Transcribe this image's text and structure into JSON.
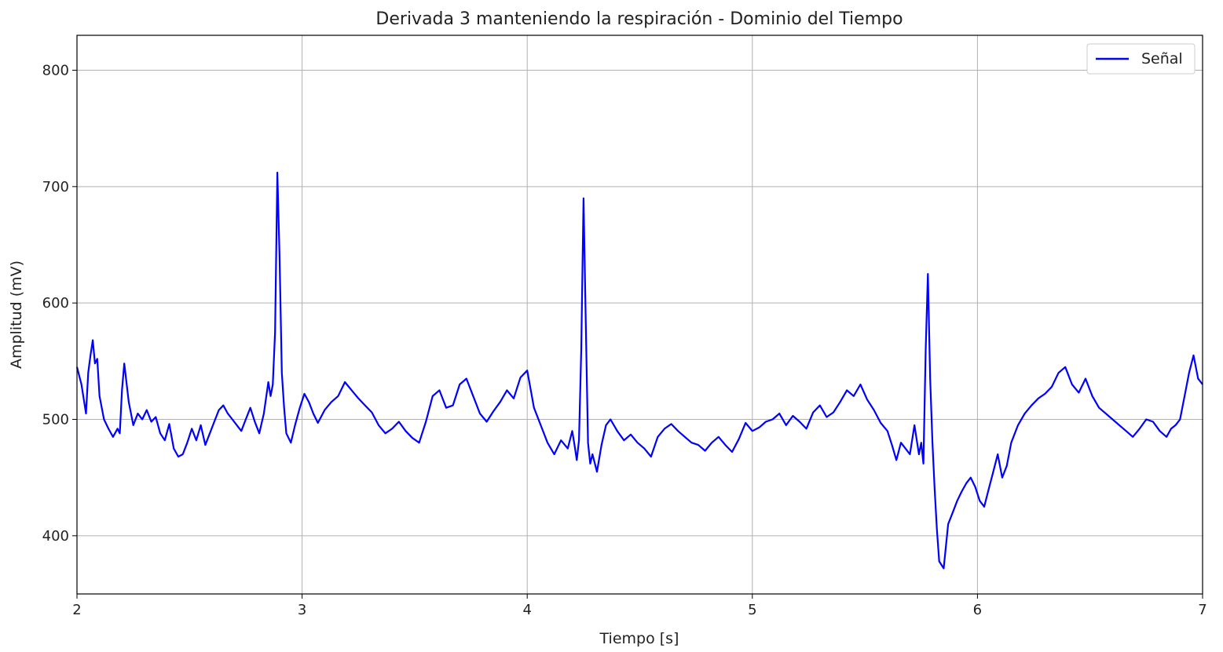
{
  "chart_data": {
    "type": "line",
    "title": "Derivada 3 manteniendo la respiración - Dominio del Tiempo",
    "xlabel": "Tiempo [s]",
    "ylabel": "Amplitud (mV)",
    "xlim": [
      2,
      7
    ],
    "ylim": [
      350,
      830
    ],
    "x_ticks": [
      "2",
      "3",
      "4",
      "5",
      "6",
      "7"
    ],
    "y_ticks": [
      "400",
      "500",
      "600",
      "700",
      "800"
    ],
    "grid": true,
    "legend_position": "top-right",
    "series": [
      {
        "name": "Señal",
        "color": "#0000ff",
        "x": [
          2.0,
          2.02,
          2.04,
          2.05,
          2.06,
          2.07,
          2.08,
          2.09,
          2.1,
          2.12,
          2.14,
          2.16,
          2.18,
          2.19,
          2.2,
          2.21,
          2.23,
          2.25,
          2.27,
          2.29,
          2.31,
          2.33,
          2.35,
          2.37,
          2.39,
          2.41,
          2.43,
          2.45,
          2.47,
          2.49,
          2.51,
          2.53,
          2.55,
          2.57,
          2.59,
          2.61,
          2.63,
          2.65,
          2.67,
          2.69,
          2.71,
          2.73,
          2.75,
          2.77,
          2.79,
          2.81,
          2.83,
          2.85,
          2.86,
          2.87,
          2.88,
          2.89,
          2.9,
          2.91,
          2.92,
          2.93,
          2.95,
          2.97,
          2.99,
          3.01,
          3.03,
          3.05,
          3.07,
          3.1,
          3.13,
          3.16,
          3.19,
          3.22,
          3.25,
          3.28,
          3.31,
          3.34,
          3.37,
          3.4,
          3.43,
          3.46,
          3.49,
          3.52,
          3.55,
          3.58,
          3.61,
          3.64,
          3.67,
          3.7,
          3.73,
          3.76,
          3.79,
          3.82,
          3.85,
          3.88,
          3.91,
          3.94,
          3.97,
          4.0,
          4.03,
          4.06,
          4.09,
          4.12,
          4.15,
          4.18,
          4.2,
          4.21,
          4.22,
          4.23,
          4.24,
          4.25,
          4.26,
          4.27,
          4.28,
          4.29,
          4.31,
          4.33,
          4.35,
          4.37,
          4.4,
          4.43,
          4.46,
          4.49,
          4.52,
          4.55,
          4.58,
          4.61,
          4.64,
          4.67,
          4.7,
          4.73,
          4.76,
          4.79,
          4.82,
          4.85,
          4.88,
          4.91,
          4.94,
          4.97,
          5.0,
          5.03,
          5.06,
          5.09,
          5.12,
          5.15,
          5.18,
          5.21,
          5.24,
          5.27,
          5.3,
          5.33,
          5.36,
          5.39,
          5.42,
          5.45,
          5.48,
          5.51,
          5.54,
          5.57,
          5.6,
          5.62,
          5.64,
          5.66,
          5.68,
          5.7,
          5.72,
          5.74,
          5.75,
          5.76,
          5.77,
          5.78,
          5.79,
          5.8,
          5.81,
          5.82,
          5.83,
          5.85,
          5.87,
          5.89,
          5.91,
          5.93,
          5.95,
          5.97,
          5.99,
          6.01,
          6.03,
          6.05,
          6.07,
          6.09,
          6.11,
          6.13,
          6.15,
          6.18,
          6.21,
          6.24,
          6.27,
          6.3,
          6.33,
          6.36,
          6.39,
          6.42,
          6.45,
          6.48,
          6.51,
          6.54,
          6.57,
          6.6,
          6.63,
          6.66,
          6.69,
          6.72,
          6.75,
          6.78,
          6.81,
          6.84,
          6.86,
          6.88,
          6.9,
          6.92,
          6.94,
          6.96,
          6.98,
          7.0
        ],
        "y": [
          545,
          530,
          505,
          540,
          555,
          568,
          548,
          552,
          520,
          500,
          492,
          485,
          492,
          488,
          525,
          548,
          515,
          495,
          505,
          500,
          508,
          498,
          502,
          488,
          482,
          496,
          475,
          468,
          470,
          480,
          492,
          482,
          495,
          478,
          488,
          498,
          508,
          512,
          505,
          500,
          495,
          490,
          500,
          510,
          498,
          488,
          505,
          532,
          520,
          530,
          575,
          712,
          640,
          540,
          510,
          488,
          480,
          496,
          510,
          522,
          515,
          505,
          497,
          508,
          515,
          520,
          532,
          525,
          518,
          512,
          506,
          495,
          488,
          492,
          498,
          490,
          484,
          480,
          498,
          520,
          525,
          510,
          512,
          530,
          535,
          520,
          505,
          498,
          507,
          515,
          525,
          518,
          536,
          542,
          510,
          495,
          480,
          470,
          482,
          475,
          490,
          478,
          465,
          482,
          560,
          690,
          585,
          480,
          462,
          470,
          455,
          478,
          495,
          500,
          490,
          482,
          487,
          480,
          475,
          468,
          485,
          492,
          496,
          490,
          485,
          480,
          478,
          473,
          480,
          485,
          478,
          472,
          483,
          497,
          490,
          493,
          498,
          500,
          505,
          495,
          503,
          498,
          492,
          506,
          512,
          502,
          506,
          515,
          525,
          520,
          530,
          517,
          508,
          497,
          490,
          478,
          465,
          480,
          475,
          470,
          495,
          470,
          480,
          462,
          560,
          625,
          535,
          480,
          440,
          405,
          378,
          372,
          410,
          420,
          430,
          438,
          445,
          450,
          442,
          430,
          425,
          440,
          455,
          470,
          450,
          460,
          480,
          495,
          505,
          512,
          518,
          522,
          528,
          540,
          545,
          530,
          523,
          535,
          520,
          510,
          505,
          500,
          495,
          490,
          485,
          492,
          500,
          498,
          490,
          485,
          492,
          495,
          500,
          520,
          540,
          555,
          535,
          530
        ]
      }
    ]
  }
}
